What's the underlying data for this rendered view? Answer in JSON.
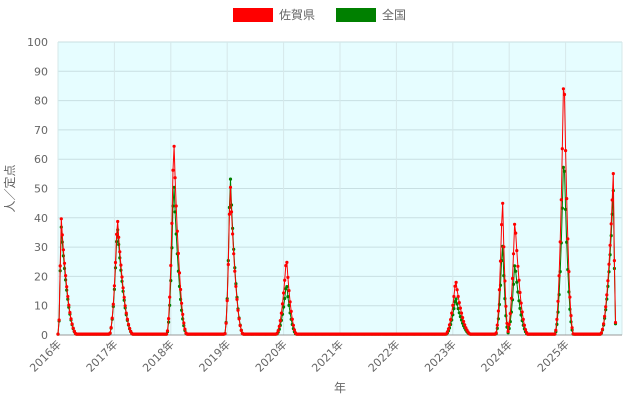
{
  "chart_data": {
    "type": "line",
    "title": "",
    "xlabel": "年",
    "ylabel": "人／定点",
    "ylim": [
      0,
      100
    ],
    "yticks": [
      0,
      10,
      20,
      30,
      40,
      50,
      60,
      70,
      80,
      90,
      100
    ],
    "x_tick_labels": [
      "2016年",
      "2017年",
      "2018年",
      "2019年",
      "2020年",
      "2021年",
      "2022年",
      "2023年",
      "2024年",
      "2025年"
    ],
    "grid": true,
    "legend_position": "top-center",
    "plot_background": "#e6fdff",
    "series": [
      {
        "name": "佐賀県",
        "color": "#ff0000",
        "epidemics": [
          {
            "start": 2016.0,
            "peak": 2016.05,
            "end": 2016.35,
            "height": 42
          },
          {
            "start": 2016.9,
            "peak": 2017.05,
            "end": 2017.35,
            "height": 41
          },
          {
            "start": 2017.92,
            "peak": 2018.05,
            "end": 2018.3,
            "height": 69
          },
          {
            "start": 2018.95,
            "peak": 2019.05,
            "end": 2019.3,
            "height": 54
          },
          {
            "start": 2019.85,
            "peak": 2020.05,
            "end": 2020.25,
            "height": 27
          },
          {
            "start": 2022.85,
            "peak": 2023.05,
            "end": 2023.35,
            "height": 19
          },
          {
            "start": 2023.75,
            "peak": 2023.88,
            "end": 2024.0,
            "height": 49
          },
          {
            "start": 2023.95,
            "peak": 2024.1,
            "end": 2024.35,
            "height": 40
          },
          {
            "start": 2024.8,
            "peak": 2024.97,
            "end": 2025.15,
            "height": 94
          },
          {
            "start": 2025.6,
            "peak": 2025.85,
            "end": 2025.9,
            "height": 57
          }
        ]
      },
      {
        "name": "全国",
        "color": "#008000",
        "epidemics": [
          {
            "start": 2016.0,
            "peak": 2016.05,
            "end": 2016.35,
            "height": 39
          },
          {
            "start": 2016.9,
            "peak": 2017.05,
            "end": 2017.35,
            "height": 38
          },
          {
            "start": 2017.92,
            "peak": 2018.05,
            "end": 2018.3,
            "height": 54
          },
          {
            "start": 2018.95,
            "peak": 2019.05,
            "end": 2019.3,
            "height": 57
          },
          {
            "start": 2019.85,
            "peak": 2020.05,
            "end": 2020.25,
            "height": 18
          },
          {
            "start": 2022.85,
            "peak": 2023.05,
            "end": 2023.35,
            "height": 13
          },
          {
            "start": 2023.75,
            "peak": 2023.88,
            "end": 2024.0,
            "height": 33
          },
          {
            "start": 2023.95,
            "peak": 2024.1,
            "end": 2024.35,
            "height": 25
          },
          {
            "start": 2024.8,
            "peak": 2024.97,
            "end": 2025.15,
            "height": 64
          },
          {
            "start": 2025.6,
            "peak": 2025.85,
            "end": 2025.9,
            "height": 51
          }
        ]
      }
    ]
  }
}
